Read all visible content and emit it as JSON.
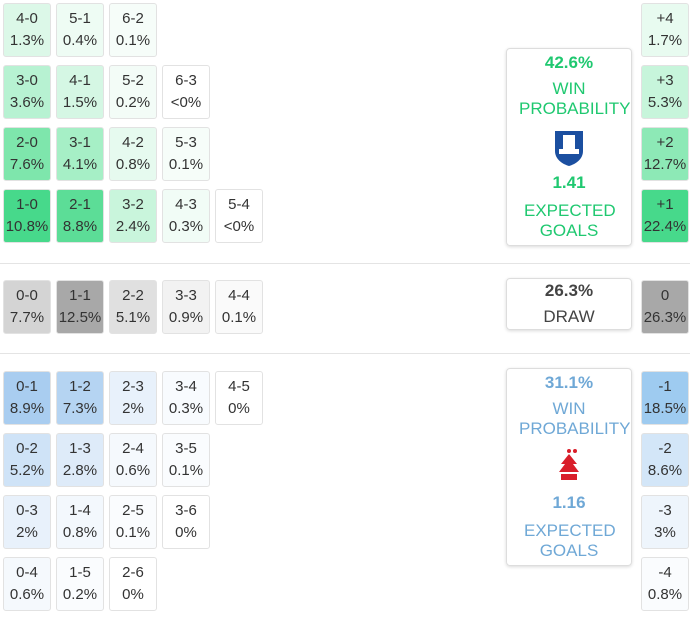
{
  "home": {
    "rows": [
      [
        {
          "score": "4-0",
          "prob": "1.3%",
          "color": "#dcf8e8"
        },
        {
          "score": "5-1",
          "prob": "0.4%",
          "color": "#eefcf4"
        },
        {
          "score": "6-2",
          "prob": "0.1%",
          "color": "#f6fdf9"
        }
      ],
      [
        {
          "score": "3-0",
          "prob": "3.6%",
          "color": "#b7f2d2"
        },
        {
          "score": "4-1",
          "prob": "1.5%",
          "color": "#d5f7e4"
        },
        {
          "score": "5-2",
          "prob": "0.2%",
          "color": "#f3fcf7"
        },
        {
          "score": "6-3",
          "prob": "<0%",
          "color": "#ffffff"
        }
      ],
      [
        {
          "score": "2-0",
          "prob": "7.6%",
          "color": "#7ee6ac"
        },
        {
          "score": "3-1",
          "prob": "4.1%",
          "color": "#a6efc6"
        },
        {
          "score": "4-2",
          "prob": "0.8%",
          "color": "#e6faef"
        },
        {
          "score": "5-3",
          "prob": "0.1%",
          "color": "#f6fdf9"
        }
      ],
      [
        {
          "score": "1-0",
          "prob": "10.8%",
          "color": "#47d98b"
        },
        {
          "score": "2-1",
          "prob": "8.8%",
          "color": "#5cdd97"
        },
        {
          "score": "3-2",
          "prob": "2.4%",
          "color": "#c9f5dc"
        },
        {
          "score": "4-3",
          "prob": "0.3%",
          "color": "#f1fcf6"
        },
        {
          "score": "5-4",
          "prob": "<0%",
          "color": "#ffffff"
        }
      ]
    ],
    "diff": [
      {
        "label": "+4",
        "prob": "1.7%",
        "color": "#e8fbf0"
      },
      {
        "label": "+3",
        "prob": "5.3%",
        "color": "#c7f5db"
      },
      {
        "label": "+2",
        "prob": "12.7%",
        "color": "#8de9b6"
      },
      {
        "label": "+1",
        "prob": "22.4%",
        "color": "#47d98b"
      }
    ],
    "summary": {
      "win_prob": "42.6%",
      "win_label": "WIN PROBABILITY",
      "xg": "1.41",
      "xg_label": "EXPECTED GOALS"
    }
  },
  "draw": {
    "rows": [
      [
        {
          "score": "0-0",
          "prob": "7.7%",
          "color": "#d4d4d4"
        },
        {
          "score": "1-1",
          "prob": "12.5%",
          "color": "#a8a8a8"
        },
        {
          "score": "2-2",
          "prob": "5.1%",
          "color": "#e0e0e0"
        },
        {
          "score": "3-3",
          "prob": "0.9%",
          "color": "#f2f2f2"
        },
        {
          "score": "4-4",
          "prob": "0.1%",
          "color": "#fafafa"
        }
      ]
    ],
    "diff": [
      {
        "label": "0",
        "prob": "26.3%",
        "color": "#a8a8a8"
      }
    ],
    "summary": {
      "prob": "26.3%",
      "label": "DRAW"
    }
  },
  "away": {
    "rows": [
      [
        {
          "score": "0-1",
          "prob": "8.9%",
          "color": "#a9cdf0"
        },
        {
          "score": "1-2",
          "prob": "7.3%",
          "color": "#b5d4f2"
        },
        {
          "score": "2-3",
          "prob": "2%",
          "color": "#e8f1fb"
        },
        {
          "score": "3-4",
          "prob": "0.3%",
          "color": "#f8fbfe"
        },
        {
          "score": "4-5",
          "prob": "0%",
          "color": "#ffffff"
        }
      ],
      [
        {
          "score": "0-2",
          "prob": "5.2%",
          "color": "#cfe3f7"
        },
        {
          "score": "1-3",
          "prob": "2.8%",
          "color": "#deebf9"
        },
        {
          "score": "2-4",
          "prob": "0.6%",
          "color": "#f5f9fd"
        },
        {
          "score": "3-5",
          "prob": "0.1%",
          "color": "#fafcfe"
        }
      ],
      [
        {
          "score": "0-3",
          "prob": "2%",
          "color": "#e8f1fb"
        },
        {
          "score": "1-4",
          "prob": "0.8%",
          "color": "#f3f8fd"
        },
        {
          "score": "2-5",
          "prob": "0.1%",
          "color": "#fafcfe"
        },
        {
          "score": "3-6",
          "prob": "0%",
          "color": "#ffffff"
        }
      ],
      [
        {
          "score": "0-4",
          "prob": "0.6%",
          "color": "#f5f9fd"
        },
        {
          "score": "1-5",
          "prob": "0.2%",
          "color": "#fafcfe"
        },
        {
          "score": "2-6",
          "prob": "0%",
          "color": "#ffffff"
        }
      ]
    ],
    "diff": [
      {
        "label": "-1",
        "prob": "18.5%",
        "color": "#9ecbf0"
      },
      {
        "label": "-2",
        "prob": "8.6%",
        "color": "#d3e6f8"
      },
      {
        "label": "-3",
        "prob": "3%",
        "color": "#eef5fc"
      },
      {
        "label": "-4",
        "prob": "0.8%",
        "color": "#fafcfe"
      }
    ],
    "summary": {
      "win_prob": "31.1%",
      "win_label": "WIN PROBABILITY",
      "xg": "1.16",
      "xg_label": "EXPECTED GOALS"
    }
  }
}
